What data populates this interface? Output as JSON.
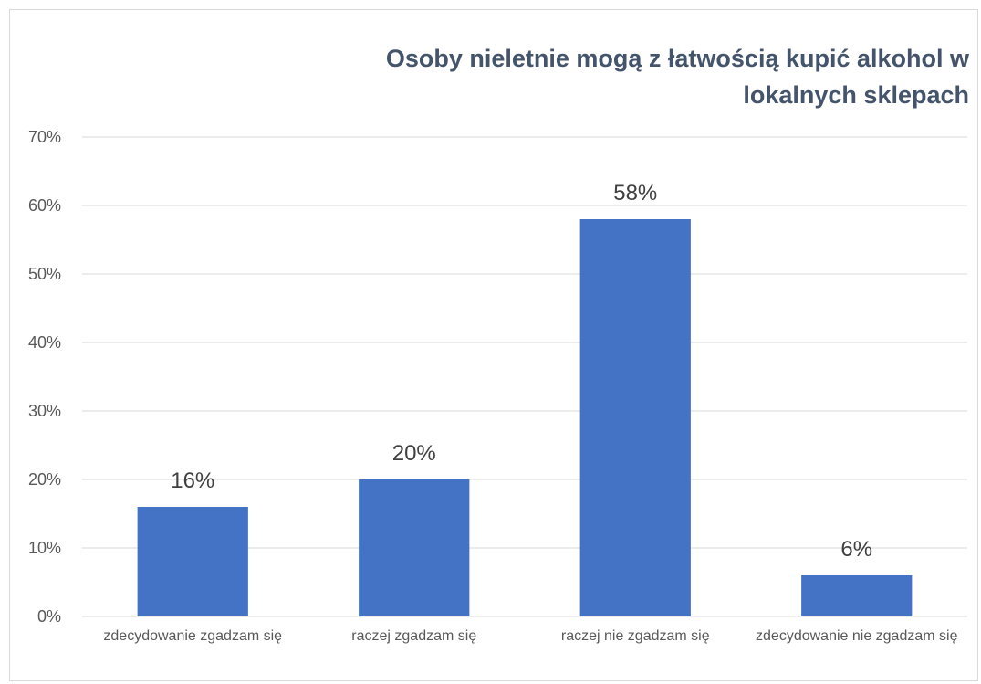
{
  "chart_data": {
    "type": "bar",
    "title": "Osoby nieletnie mogą z łatwością kupić alkohol w lokalnych sklepach",
    "categories": [
      "zdecydowanie zgadzam się",
      "raczej zgadzam się",
      "raczej nie zgadzam się",
      "zdecydowanie nie zgadzam się"
    ],
    "values": [
      16,
      20,
      58,
      6
    ],
    "value_labels": [
      "16%",
      "20%",
      "58%",
      "6%"
    ],
    "color": "#4472c4",
    "ylim": [
      0,
      70
    ],
    "yticks": [
      {
        "value": 0,
        "label": "0%"
      },
      {
        "value": 10,
        "label": "10%"
      },
      {
        "value": 20,
        "label": "20%"
      },
      {
        "value": 30,
        "label": "30%"
      },
      {
        "value": 40,
        "label": "40%"
      },
      {
        "value": 50,
        "label": "50%"
      },
      {
        "value": 60,
        "label": "60%"
      },
      {
        "value": 70,
        "label": "70%"
      }
    ],
    "grid": true
  }
}
